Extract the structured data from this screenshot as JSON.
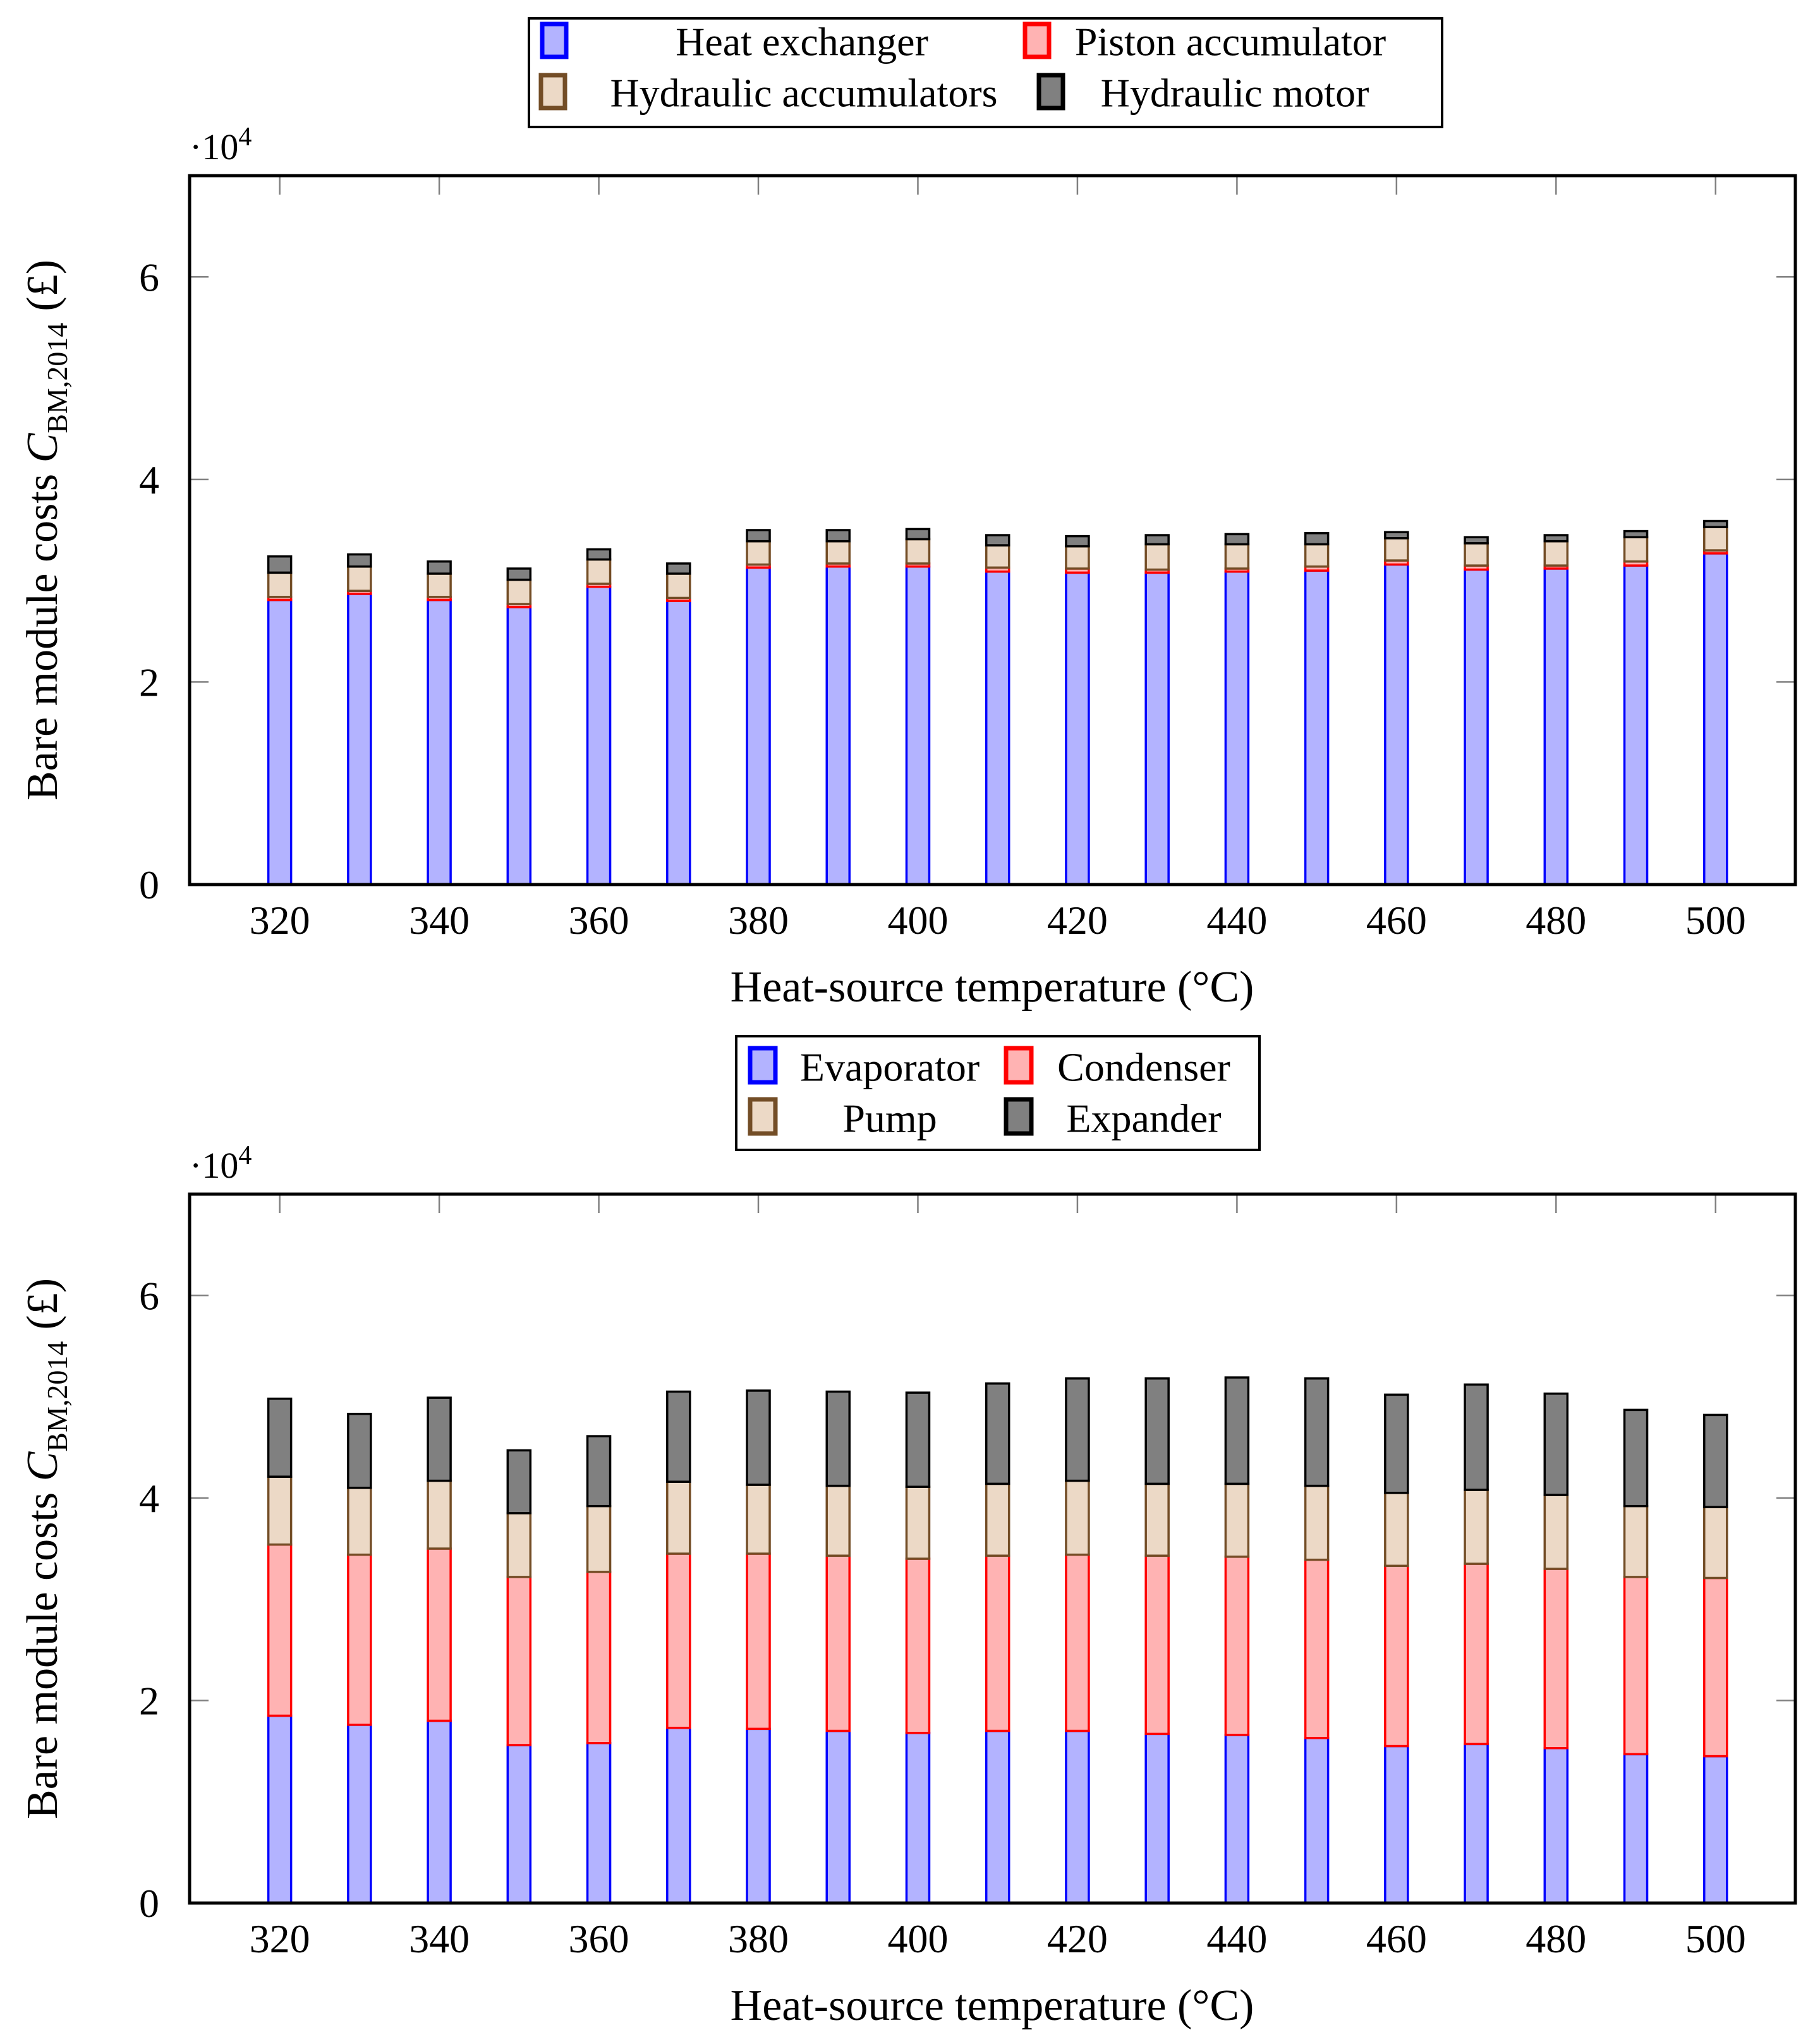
{
  "labels": {
    "x": "Heat-source temperature (°C)",
    "y_prefix": "Bare module costs ",
    "y_symbol": "C",
    "y_sub": "BM,2014",
    "y_suffix": "(£)",
    "multiplier_base": "·10",
    "multiplier_exp": "4"
  },
  "chart_data": [
    {
      "type": "bar",
      "stacked": true,
      "title": "",
      "xlabel": "Heat-source temperature (°C)",
      "ylabel": "Bare module costs C_BM,2014 (£)",
      "y_unit_multiplier": 10000,
      "ylim": [
        0,
        7
      ],
      "y_ticks": [
        0,
        2,
        4,
        6
      ],
      "x": [
        320,
        330,
        340,
        350,
        360,
        370,
        380,
        390,
        400,
        410,
        420,
        430,
        440,
        450,
        460,
        470,
        480,
        490,
        500
      ],
      "x_tick_labels": [
        320,
        340,
        360,
        380,
        400,
        420,
        440,
        460,
        480,
        500
      ],
      "grid": false,
      "legend_position": "top-center",
      "series": [
        {
          "name": "Heat exchanger",
          "fill": "#B3B3FF",
          "stroke": "#0000FF",
          "values": [
            2.81,
            2.87,
            2.81,
            2.74,
            2.94,
            2.8,
            3.13,
            3.14,
            3.14,
            3.09,
            3.08,
            3.08,
            3.09,
            3.1,
            3.16,
            3.11,
            3.12,
            3.15,
            3.27
          ]
        },
        {
          "name": "Piston accumulator",
          "fill": "#FFB3B3",
          "stroke": "#FF0000",
          "values": [
            0.03,
            0.03,
            0.03,
            0.03,
            0.03,
            0.03,
            0.03,
            0.03,
            0.03,
            0.04,
            0.04,
            0.03,
            0.03,
            0.04,
            0.04,
            0.04,
            0.03,
            0.04,
            0.03
          ]
        },
        {
          "name": "Hydraulic accumulators",
          "fill": "#ECD9C6",
          "stroke": "#734D26",
          "values": [
            0.24,
            0.24,
            0.23,
            0.24,
            0.24,
            0.24,
            0.23,
            0.22,
            0.24,
            0.22,
            0.22,
            0.25,
            0.24,
            0.22,
            0.22,
            0.22,
            0.24,
            0.24,
            0.23
          ]
        },
        {
          "name": "Hydraulic motor",
          "fill": "#808080",
          "stroke": "#000000",
          "values": [
            0.16,
            0.12,
            0.12,
            0.11,
            0.1,
            0.1,
            0.11,
            0.11,
            0.1,
            0.1,
            0.1,
            0.09,
            0.1,
            0.11,
            0.06,
            0.06,
            0.06,
            0.06,
            0.06
          ]
        }
      ]
    },
    {
      "type": "bar",
      "stacked": true,
      "title": "",
      "xlabel": "Heat-source temperature (°C)",
      "ylabel": "Bare module costs C_BM,2014 (£)",
      "y_unit_multiplier": 10000,
      "ylim": [
        0,
        7
      ],
      "y_ticks": [
        0,
        2,
        4,
        6
      ],
      "x": [
        320,
        330,
        340,
        350,
        360,
        370,
        380,
        390,
        400,
        410,
        420,
        430,
        440,
        450,
        460,
        470,
        480,
        490,
        500
      ],
      "x_tick_labels": [
        320,
        340,
        360,
        380,
        400,
        420,
        440,
        460,
        480,
        500
      ],
      "grid": false,
      "legend_position": "top-center",
      "series": [
        {
          "name": "Evaporator",
          "fill": "#B3B3FF",
          "stroke": "#0000FF",
          "values": [
            1.85,
            1.76,
            1.8,
            1.56,
            1.58,
            1.73,
            1.72,
            1.7,
            1.68,
            1.7,
            1.7,
            1.67,
            1.66,
            1.63,
            1.55,
            1.57,
            1.53,
            1.47,
            1.45
          ]
        },
        {
          "name": "Condenser",
          "fill": "#FFB3B3",
          "stroke": "#FF0000",
          "values": [
            1.69,
            1.68,
            1.7,
            1.66,
            1.69,
            1.72,
            1.73,
            1.73,
            1.72,
            1.73,
            1.74,
            1.76,
            1.76,
            1.76,
            1.78,
            1.78,
            1.77,
            1.75,
            1.76
          ]
        },
        {
          "name": "Pump",
          "fill": "#ECD9C6",
          "stroke": "#734D26",
          "values": [
            0.67,
            0.66,
            0.67,
            0.63,
            0.65,
            0.71,
            0.68,
            0.69,
            0.71,
            0.71,
            0.73,
            0.71,
            0.72,
            0.73,
            0.72,
            0.73,
            0.73,
            0.7,
            0.7
          ]
        },
        {
          "name": "Expander",
          "fill": "#808080",
          "stroke": "#000000",
          "values": [
            0.77,
            0.73,
            0.82,
            0.62,
            0.69,
            0.89,
            0.93,
            0.93,
            0.93,
            0.99,
            1.01,
            1.04,
            1.05,
            1.06,
            0.97,
            1.04,
            1.0,
            0.95,
            0.91
          ]
        }
      ]
    }
  ]
}
